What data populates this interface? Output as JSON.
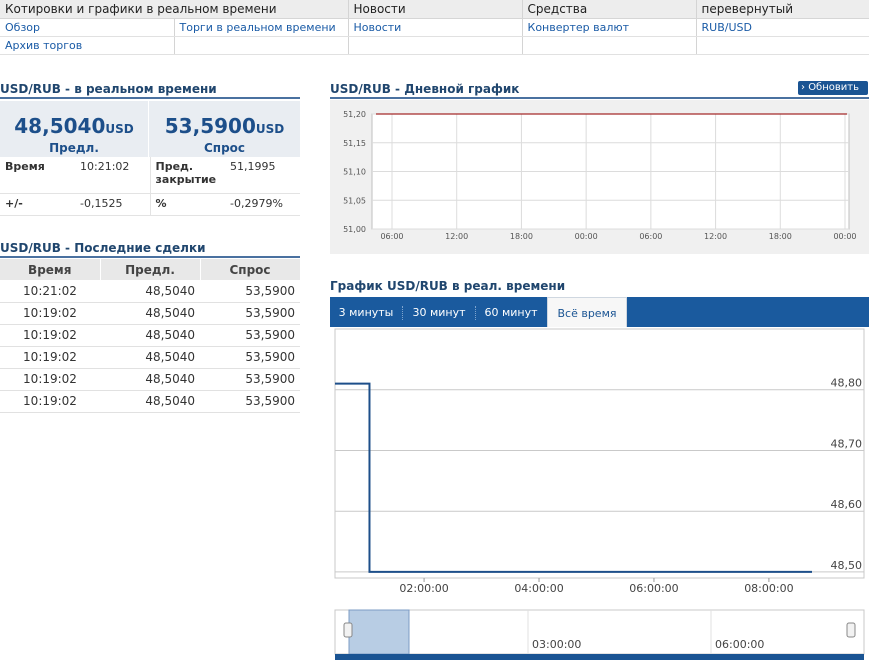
{
  "nav": {
    "headers": [
      "Котировки и графики в реальном времени",
      "Новости",
      "Средства",
      "перевернутый"
    ],
    "links": [
      [
        "Обзор",
        "Торги в реальном времени",
        "Новости",
        "Конвертер валют",
        "RUB/USD"
      ],
      [
        "Архив торгов",
        "",
        "",
        "",
        ""
      ]
    ]
  },
  "realtime": {
    "title": "USD/RUB - в реальном времени",
    "bid": {
      "value": "48,5040",
      "unit": "USD",
      "label": "Предл."
    },
    "ask": {
      "value": "53,5900",
      "unit": "USD",
      "label": "Спрос"
    },
    "time_label": "Время",
    "time_value": "10:21:02",
    "prev_close_label": "Пред. закрытие",
    "prev_close_value": "51,1995",
    "change_label": "+/-",
    "change_value": "-0,1525",
    "pct_label": "%",
    "pct_value": "-0,2979%"
  },
  "trades": {
    "title": "USD/RUB - Последние сделки",
    "columns": [
      "Время",
      "Предл.",
      "Спрос"
    ],
    "rows": [
      [
        "10:21:02",
        "48,5040",
        "53,5900"
      ],
      [
        "10:19:02",
        "48,5040",
        "53,5900"
      ],
      [
        "10:19:02",
        "48,5040",
        "53,5900"
      ],
      [
        "10:19:02",
        "48,5040",
        "53,5900"
      ],
      [
        "10:19:02",
        "48,5040",
        "53,5900"
      ],
      [
        "10:19:02",
        "48,5040",
        "53,5900"
      ]
    ]
  },
  "day_chart": {
    "title": "USD/RUB - Дневной график",
    "refresh_label": "Обновить"
  },
  "rt_chart": {
    "title": "График USD/RUB в реал. времени",
    "tabs": [
      "3 минуты",
      "30 минут",
      "60 минут",
      "Всё время"
    ],
    "active_tab": 3,
    "nav_labels": [
      "03:00:00",
      "06:00:00"
    ]
  },
  "chart_data": [
    {
      "type": "line",
      "title": "USD/RUB - Дневной график",
      "x_ticks": [
        "06:00",
        "12:00",
        "18:00",
        "00:00",
        "06:00",
        "12:00",
        "18:00",
        "00:00"
      ],
      "y_ticks": [
        "51,20",
        "51,15",
        "51,10",
        "51,05",
        "51,00"
      ],
      "ylim": [
        51.0,
        51.2
      ],
      "series": [
        {
          "x": [
            0,
            8
          ],
          "y": [
            51.2,
            51.2
          ]
        }
      ],
      "line_color": "#a52a2a",
      "grid": true
    },
    {
      "type": "line",
      "title": "График USD/RUB в реал. времени",
      "x_ticks": [
        "02:00:00",
        "04:00:00",
        "06:00:00",
        "08:00:00"
      ],
      "y_ticks": [
        "48,80",
        "48,70",
        "48,60",
        "48,50"
      ],
      "ylim": [
        48.49,
        48.9
      ],
      "series": [
        {
          "x": [
            "00:27:00",
            "01:03:00",
            "01:03:00",
            "08:45:00"
          ],
          "y": [
            48.81,
            48.81,
            48.5,
            48.5
          ]
        }
      ],
      "line_color": "#1d4f8a",
      "grid": true
    }
  ]
}
